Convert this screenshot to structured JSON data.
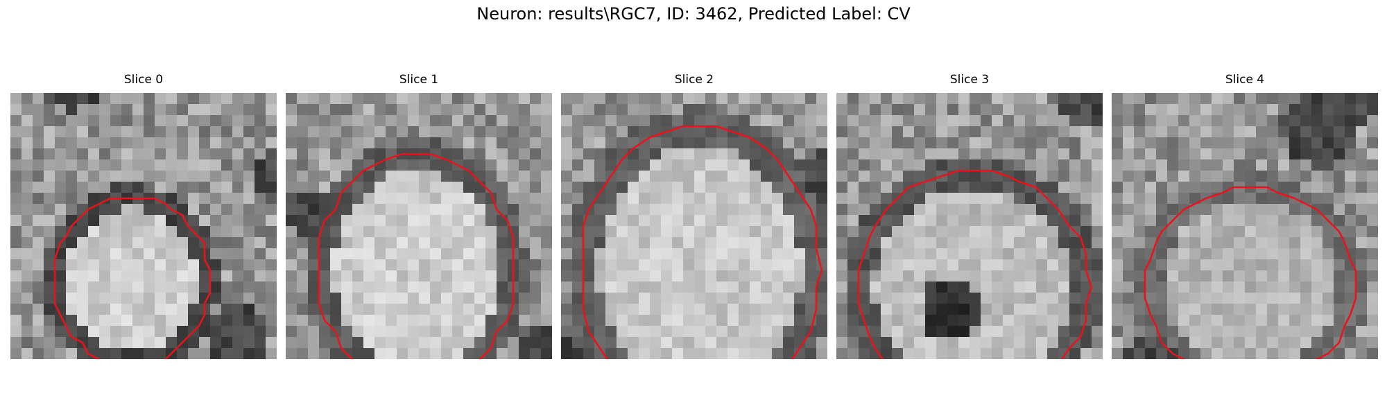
{
  "figure_title": "Neuron: results\\RGC7, ID: 3462, Predicted Label: CV",
  "contour_color": "#e8141c",
  "panels": [
    {
      "title": "Slice 0"
    },
    {
      "title": "Slice 1"
    },
    {
      "title": "Slice 2"
    },
    {
      "title": "Slice 3"
    },
    {
      "title": "Slice 4"
    }
  ]
}
